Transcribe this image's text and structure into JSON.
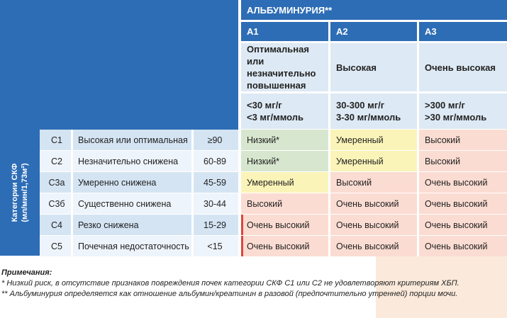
{
  "colors": {
    "header_blue": "#2d6db5",
    "light_blue": "#dde9f4",
    "row_blue": "#d4e4f3",
    "row_white": "#eef4fb",
    "low": "#d7e7cf",
    "moderate": "#fbf4b8",
    "high": "#fbdcd2",
    "very_high_accent": "#d9483a"
  },
  "albuminuria": {
    "title": "АЛЬБУМИНУРИЯ**",
    "categories": [
      {
        "code": "А1",
        "desc": "Оптимальная или незначительно повышенная",
        "range1": "<30 мг/г",
        "range2": "<3 мг/ммоль"
      },
      {
        "code": "А2",
        "desc": "Высокая",
        "range1": "30-300 мг/г",
        "range2": "3-30 мг/ммоль"
      },
      {
        "code": "А3",
        "desc": "Очень высокая",
        "range1": ">300 мг/г",
        "range2": ">30 мг/ммоль"
      }
    ]
  },
  "gfr": {
    "label1": "Категории СКФ",
    "label2": "(мл/мин/1,73м²)",
    "rows": [
      {
        "code": "С1",
        "name": "Высокая или оптимальная",
        "value": "≥90",
        "risks": [
          "Низкий*",
          "Умеренный",
          "Высокий"
        ]
      },
      {
        "code": "С2",
        "name": "Незначительно снижена",
        "value": "60-89",
        "risks": [
          "Низкий*",
          "Умеренный",
          "Высокий"
        ]
      },
      {
        "code": "С3а",
        "name": "Умеренно снижена",
        "value": "45-59",
        "risks": [
          "Умеренный",
          "Высокий",
          "Очень высокий"
        ]
      },
      {
        "code": "С3б",
        "name": "Существенно снижена",
        "value": "30-44",
        "risks": [
          "Высокий",
          "Очень высокий",
          "Очень высокий"
        ]
      },
      {
        "code": "С4",
        "name": "Резко снижена",
        "value": "15-29",
        "risks": [
          "Очень высокий",
          "Очень высокий",
          "Очень высокий"
        ]
      },
      {
        "code": "С5",
        "name": "Почечная недостаточность",
        "value": "<15",
        "risks": [
          "Очень высокий",
          "Очень высокий",
          "Очень высокий"
        ]
      }
    ]
  },
  "notes": {
    "title": "Примечания:",
    "note1": "* Низкий риск, в отсутствие признаков повреждения почек категории СКФ С1 или С2 не удовлетворяют критериям ХБП.",
    "note2": "** Альбуминурия определяется как отношение альбумин/креатинин в разовой (предпочтительно утренней) порции мочи."
  }
}
